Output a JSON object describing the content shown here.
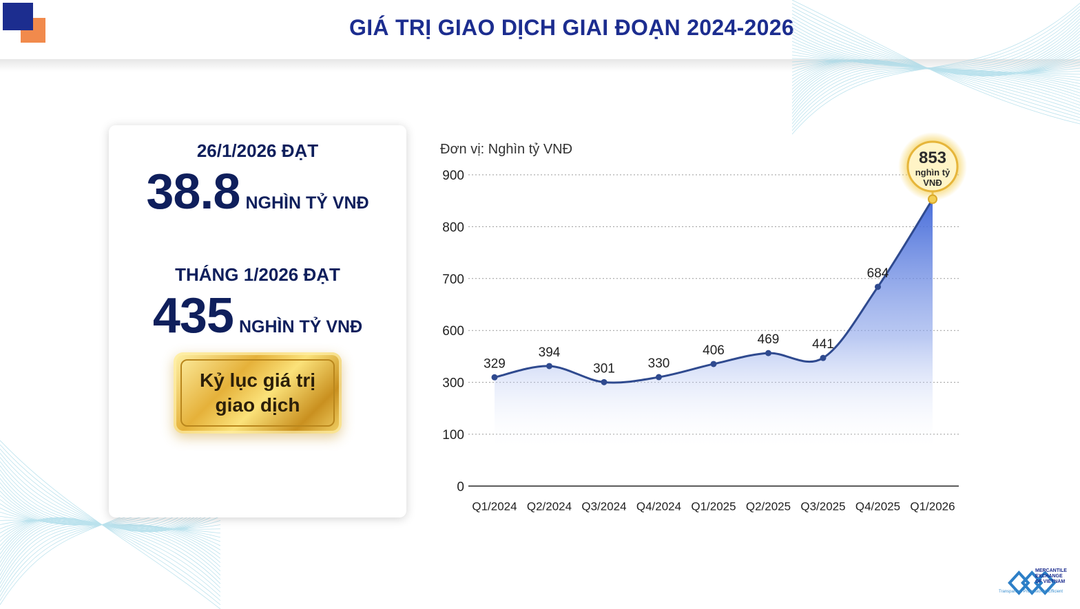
{
  "header": {
    "title": "GIÁ TRỊ GIAO DỊCH GIAI ĐOẠN 2024-2026",
    "accent_color": "#1c2d8f",
    "secondary_color": "#f18a4c"
  },
  "stats": {
    "daily_label": "26/1/2026 ĐẠT",
    "daily_value": "38.8",
    "daily_unit": "NGHÌN TỶ VNĐ",
    "monthly_label": "THÁNG 1/2026 ĐẠT",
    "monthly_value": "435",
    "monthly_unit": "NGHÌN TỶ VNĐ",
    "badge_line1": "Kỷ lục giá trị",
    "badge_line2": "giao dịch"
  },
  "chart_data": {
    "type": "area",
    "unit_label": "Đơn vị: Nghìn tỷ VNĐ",
    "categories": [
      "Q1/2024",
      "Q2/2024",
      "Q3/2024",
      "Q4/2024",
      "Q1/2025",
      "Q2/2025",
      "Q3/2025",
      "Q4/2025",
      "Q1/2026"
    ],
    "values": [
      329,
      394,
      301,
      330,
      406,
      469,
      441,
      684,
      853
    ],
    "y_ticks": [
      0,
      100,
      300,
      600,
      700,
      800,
      900
    ],
    "highlight": {
      "value": "853",
      "line1": "nghìn tỷ",
      "line2": "VNĐ"
    },
    "grid": true,
    "line_color": "#2f4a8f",
    "fill_color": "#3f66d8"
  },
  "footer": {
    "org_line1": "MERCANTILE",
    "org_line2": "EXCHANGE",
    "org_line3": "OF VIETNAM",
    "slogan": "Transparent. Professional. Efficient",
    "icon": "mxv-logo-icon"
  }
}
